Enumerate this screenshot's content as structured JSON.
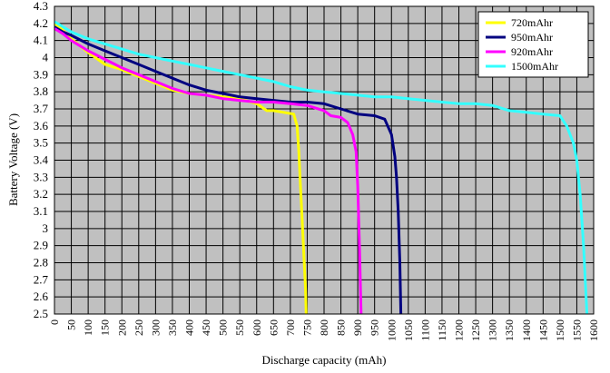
{
  "chart_data": {
    "type": "line",
    "title": "",
    "xlabel": "Discharge capacity (mAh)",
    "ylabel": "Battery Voltage (V)",
    "xlim": [
      0,
      1600
    ],
    "ylim": [
      2.5,
      4.3
    ],
    "xticks": [
      "0",
      "50",
      "100",
      "150",
      "200",
      "250",
      "300",
      "350",
      "400",
      "450",
      "500",
      "550",
      "600",
      "650",
      "700",
      "750",
      "800",
      "850",
      "900",
      "950",
      "1000",
      "1050",
      "1100",
      "1150",
      "1200",
      "1250",
      "1300",
      "1350",
      "1400",
      "1450",
      "1500",
      "1550",
      "1600"
    ],
    "yticks": [
      "2.5",
      "2.6",
      "2.7",
      "2.8",
      "2.9",
      "3",
      "3.1",
      "3.2",
      "3.3",
      "3.4",
      "3.5",
      "3.6",
      "3.7",
      "3.8",
      "3.9",
      "4",
      "4.1",
      "4.2",
      "4.3"
    ],
    "grid": true,
    "plot_background": "#c0c0c0",
    "legend_position": "top-right",
    "series": [
      {
        "name": "720mAhr",
        "color": "#ffff00",
        "x": [
          0,
          25,
          50,
          100,
          150,
          200,
          250,
          300,
          350,
          400,
          450,
          500,
          550,
          600,
          630,
          650,
          680,
          710,
          720,
          725,
          730,
          735,
          740,
          745,
          747
        ],
        "y": [
          4.2,
          4.16,
          4.11,
          4.03,
          3.96,
          3.93,
          3.89,
          3.85,
          3.81,
          3.79,
          3.78,
          3.77,
          3.76,
          3.73,
          3.69,
          3.69,
          3.68,
          3.67,
          3.6,
          3.45,
          3.25,
          3.05,
          2.85,
          2.65,
          2.5
        ]
      },
      {
        "name": "950mAhr",
        "color": "#000080",
        "x": [
          0,
          25,
          50,
          100,
          150,
          200,
          250,
          300,
          350,
          400,
          450,
          500,
          550,
          600,
          650,
          700,
          750,
          800,
          850,
          900,
          950,
          980,
          1000,
          1010,
          1015,
          1020,
          1025,
          1028
        ],
        "y": [
          4.18,
          4.15,
          4.13,
          4.08,
          4.04,
          4.0,
          3.96,
          3.92,
          3.88,
          3.84,
          3.81,
          3.79,
          3.77,
          3.76,
          3.75,
          3.74,
          3.74,
          3.73,
          3.7,
          3.67,
          3.66,
          3.64,
          3.55,
          3.42,
          3.3,
          3.1,
          2.8,
          2.5
        ]
      },
      {
        "name": "920mAhr",
        "color": "#ff00ff",
        "x": [
          0,
          25,
          50,
          100,
          150,
          200,
          250,
          300,
          350,
          400,
          450,
          500,
          550,
          600,
          650,
          700,
          750,
          800,
          820,
          850,
          870,
          885,
          895,
          900,
          905,
          910
        ],
        "y": [
          4.17,
          4.14,
          4.1,
          4.04,
          3.99,
          3.94,
          3.9,
          3.86,
          3.82,
          3.79,
          3.78,
          3.76,
          3.75,
          3.74,
          3.74,
          3.73,
          3.72,
          3.69,
          3.66,
          3.65,
          3.62,
          3.55,
          3.45,
          3.25,
          2.9,
          2.5
        ]
      },
      {
        "name": "1500mAhr",
        "color": "#33ffff",
        "x": [
          0,
          50,
          100,
          150,
          200,
          250,
          300,
          350,
          400,
          450,
          500,
          550,
          600,
          650,
          700,
          750,
          800,
          850,
          900,
          950,
          1000,
          1050,
          1100,
          1150,
          1200,
          1250,
          1300,
          1350,
          1400,
          1450,
          1500,
          1520,
          1540,
          1550,
          1560,
          1570,
          1575,
          1580
        ],
        "y": [
          4.21,
          4.15,
          4.11,
          4.08,
          4.05,
          4.02,
          4.0,
          3.98,
          3.96,
          3.94,
          3.92,
          3.9,
          3.88,
          3.86,
          3.83,
          3.81,
          3.8,
          3.79,
          3.78,
          3.77,
          3.77,
          3.76,
          3.75,
          3.74,
          3.73,
          3.73,
          3.72,
          3.69,
          3.68,
          3.67,
          3.66,
          3.6,
          3.5,
          3.4,
          3.2,
          2.9,
          2.7,
          2.5
        ]
      }
    ]
  }
}
